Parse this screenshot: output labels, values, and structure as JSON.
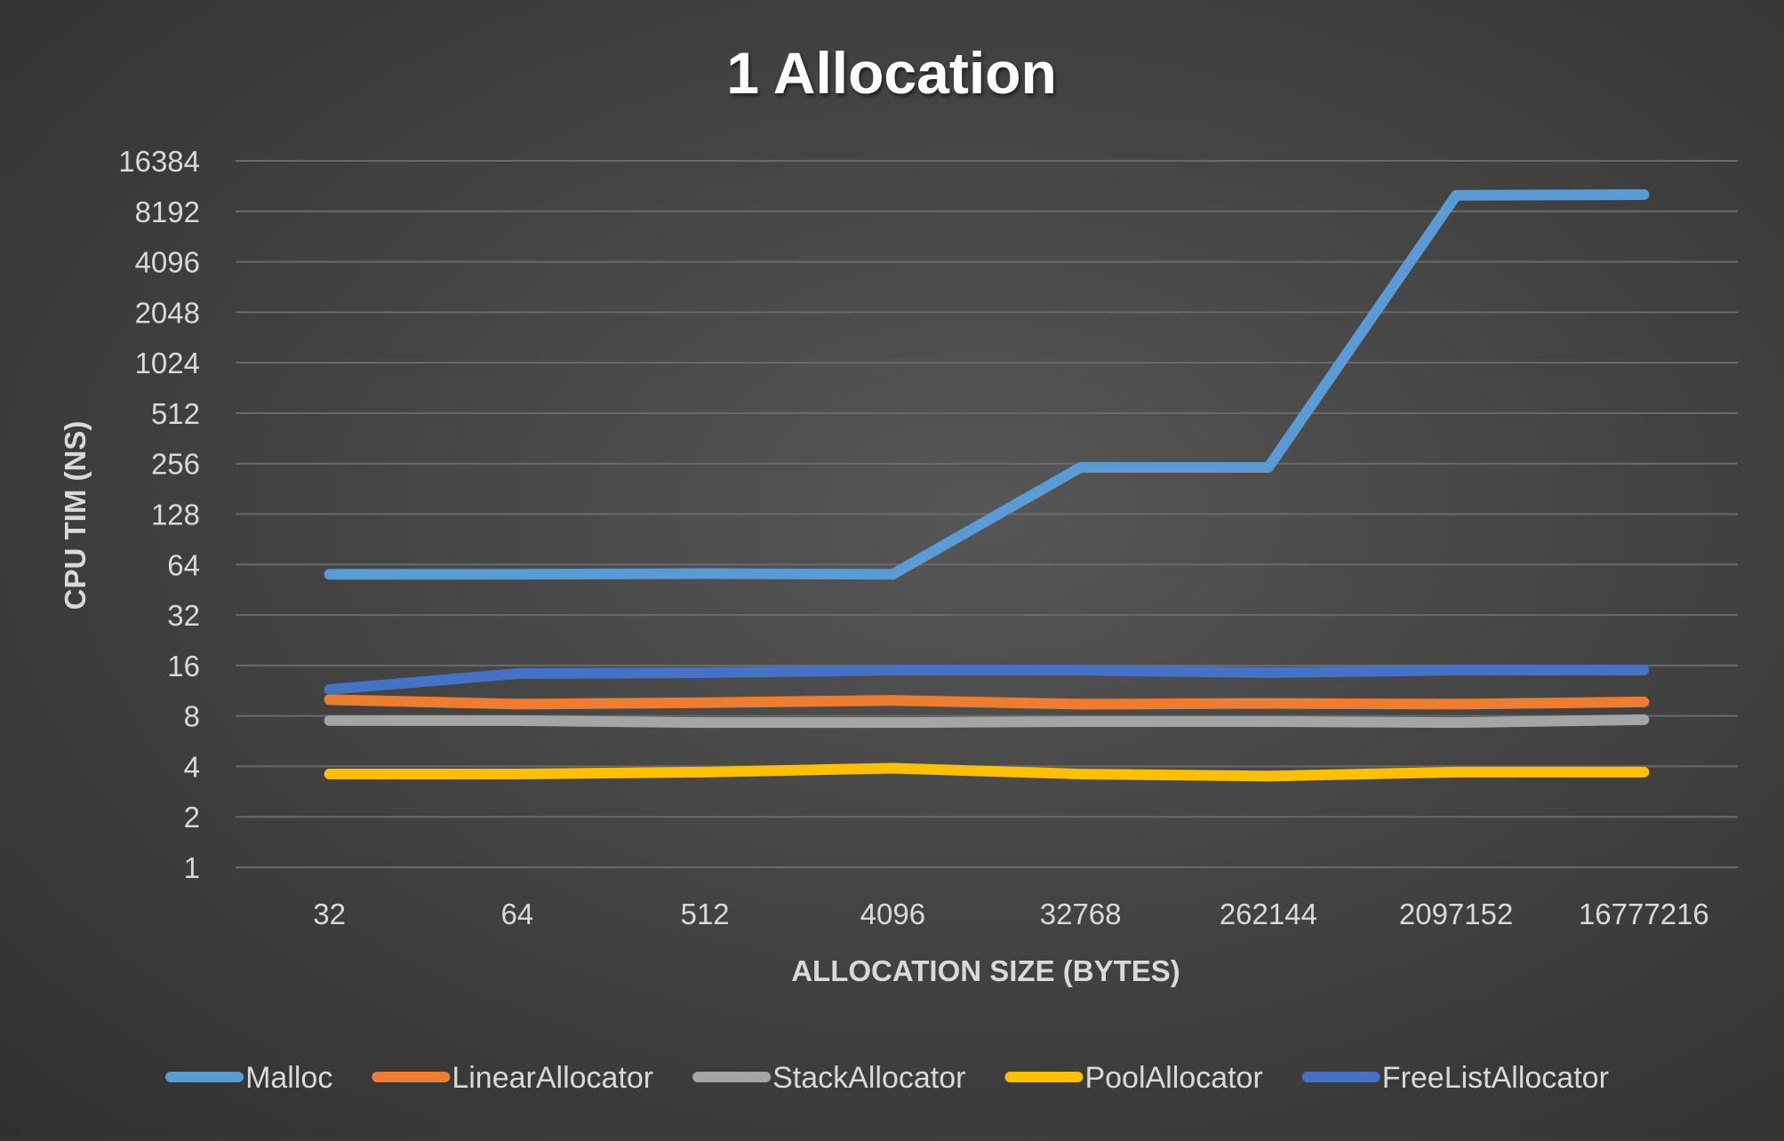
{
  "chart_data": {
    "type": "line",
    "title": "1 Allocation",
    "xlabel": "ALLOCATION SIZE (BYTES)",
    "ylabel": "CPU TIM (NS)",
    "y_scale": "log2",
    "ylim": [
      1,
      16384
    ],
    "yticks": [
      "16384",
      "8192",
      "4096",
      "2048",
      "1024",
      "512",
      "256",
      "128",
      "64",
      "32",
      "16",
      "8",
      "4",
      "2",
      "1"
    ],
    "categories": [
      "32",
      "64",
      "512",
      "4096",
      "32768",
      "262144",
      "2097152",
      "16777216"
    ],
    "grid": true,
    "legend_position": "bottom",
    "series": [
      {
        "name": "Malloc",
        "color": "#5B9BD5",
        "values": [
          56,
          56,
          56.5,
          56,
          243,
          243,
          10200,
          10300
        ]
      },
      {
        "name": "LinearAllocator",
        "color": "#ED7D31",
        "values": [
          10,
          9.4,
          9.6,
          9.9,
          9.4,
          9.5,
          9.4,
          9.7
        ]
      },
      {
        "name": "StackAllocator",
        "color": "#A5A5A5",
        "values": [
          7.5,
          7.5,
          7.3,
          7.3,
          7.4,
          7.4,
          7.3,
          7.6
        ]
      },
      {
        "name": "PoolAllocator",
        "color": "#FFC000",
        "values": [
          3.6,
          3.6,
          3.7,
          3.9,
          3.6,
          3.5,
          3.7,
          3.7
        ]
      },
      {
        "name": "FreeListAllocator",
        "color": "#4472C4",
        "values": [
          11.5,
          14.3,
          14.5,
          15,
          15,
          14.5,
          15,
          15
        ]
      }
    ]
  }
}
